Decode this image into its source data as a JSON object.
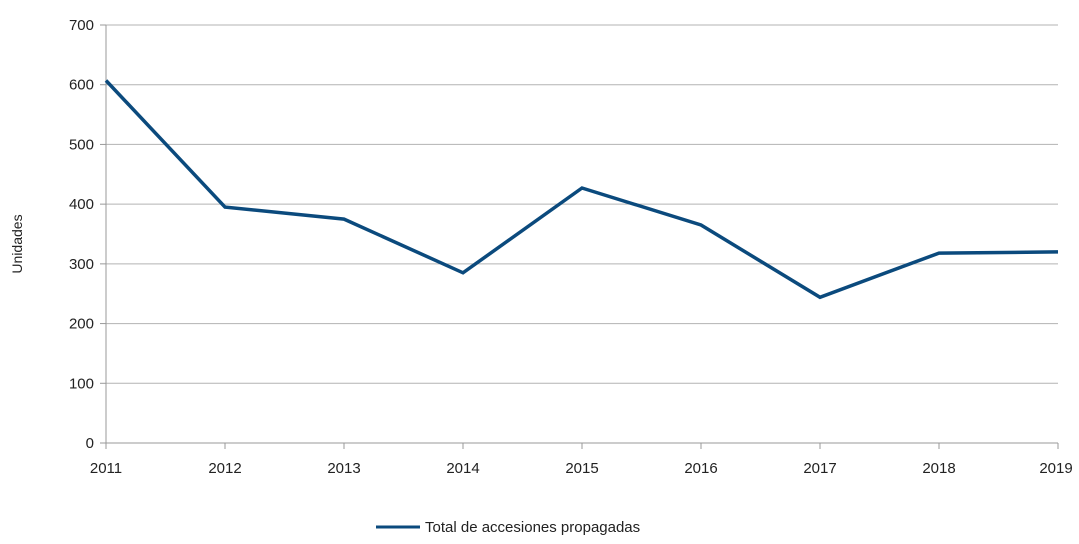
{
  "chart_data": {
    "type": "line",
    "title": "",
    "xlabel": "",
    "ylabel": "Unidades",
    "x": [
      "2011",
      "2012",
      "2013",
      "2014",
      "2015",
      "2016",
      "2017",
      "2018",
      "2019"
    ],
    "series": [
      {
        "name": "Total de accesiones propagadas",
        "color": "#0b4a7d",
        "values": [
          607,
          395,
          375,
          285,
          427,
          365,
          244,
          318,
          320
        ]
      }
    ],
    "ylim": [
      0,
      700
    ],
    "yticks": [
      0,
      100,
      200,
      300,
      400,
      500,
      600,
      700
    ],
    "grid": true,
    "legend_position": "bottom-center"
  }
}
